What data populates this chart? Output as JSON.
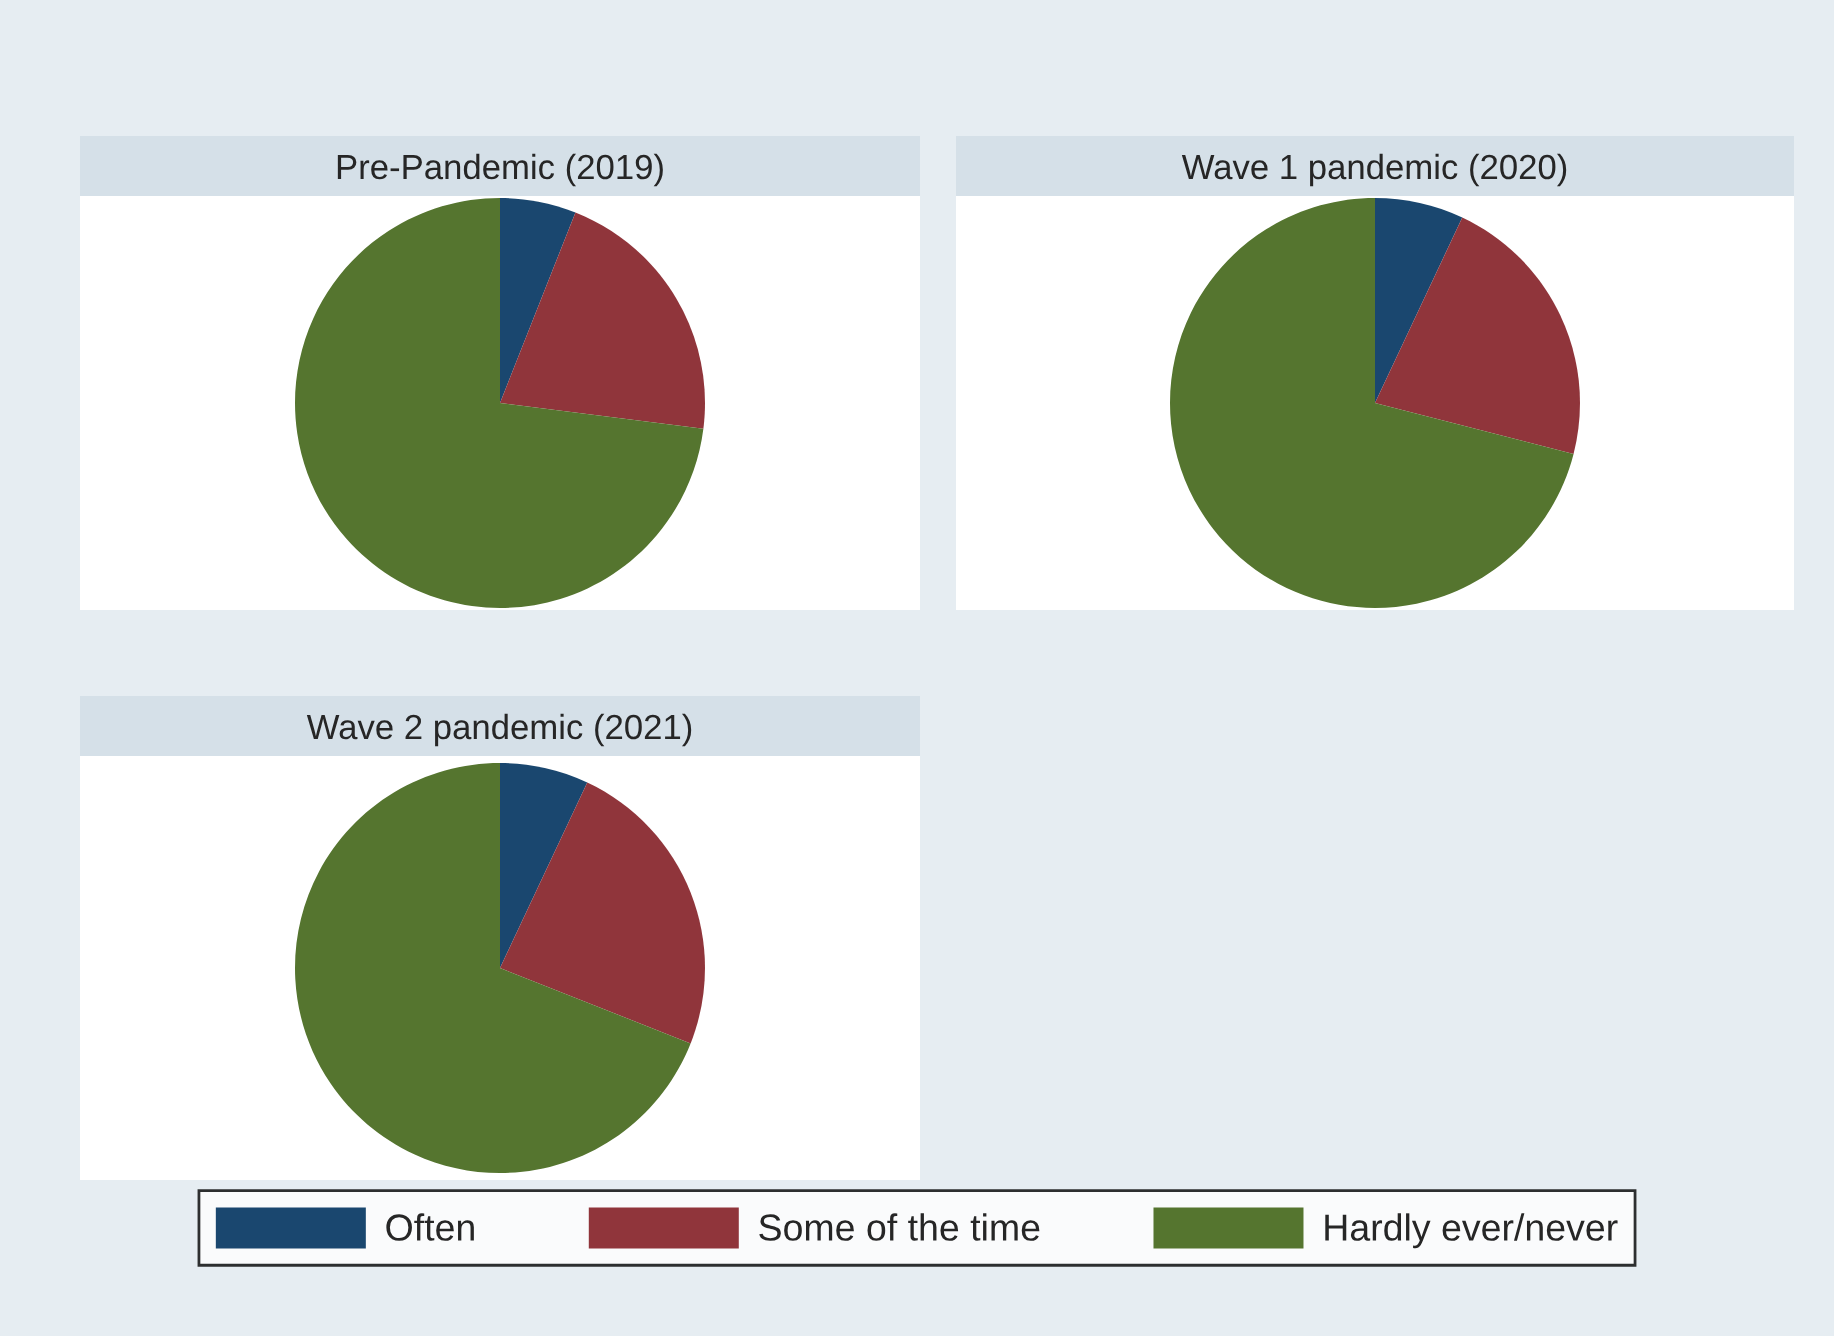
{
  "chart_data": [
    {
      "type": "pie",
      "title": "Pre-Pandemic (2019)",
      "categories": [
        "Often",
        "Some of the time",
        "Hardly ever/never"
      ],
      "values": [
        6,
        21,
        73
      ],
      "colors": [
        "#1a476f",
        "#90353b",
        "#55752f"
      ],
      "legend": "bottom"
    },
    {
      "type": "pie",
      "title": "Wave 1 pandemic (2020)",
      "values": [
        7,
        22,
        71
      ],
      "colors": [
        "#1a476f",
        "#90353b",
        "#55752f"
      ]
    },
    {
      "type": "pie",
      "title": "Wave 2 pandemic (2021)",
      "values": [
        7,
        24,
        69
      ],
      "colors": [
        "#1a476f",
        "#90353b",
        "#55752f"
      ]
    }
  ]
}
